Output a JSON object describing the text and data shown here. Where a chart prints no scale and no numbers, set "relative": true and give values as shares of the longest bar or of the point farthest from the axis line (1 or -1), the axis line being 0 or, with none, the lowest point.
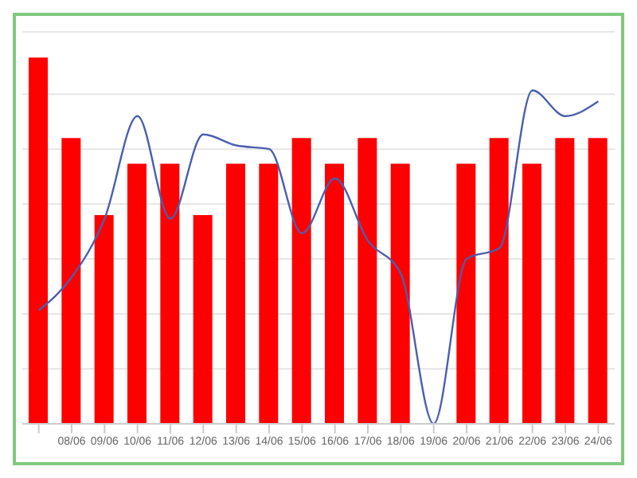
{
  "chart_data": {
    "type": "bar",
    "relative": true,
    "grid": "y",
    "categories": [
      null,
      "08/06",
      "09/06",
      "10/06",
      "11/06",
      "12/06",
      "13/06",
      "14/06",
      "15/06",
      "16/06",
      "17/06",
      "18/06",
      "19/06",
      "20/06",
      "21/06",
      "22/06",
      "23/06",
      "24/06"
    ],
    "series": [
      {
        "color": "#ff0000",
        "values": [
          1,
          0.78,
          0.57,
          0.71,
          0.71,
          0.57,
          0.71,
          0.71,
          0.78,
          0.71,
          0.78,
          0.71,
          0,
          0.71,
          0.78,
          0.71,
          0.78,
          0.78
        ]
      },
      {
        "type": "line",
        "color": "#4a5fb0",
        "values": [
          0.31,
          0.4,
          0.56,
          0.84,
          0.56,
          0.79,
          0.76,
          0.75,
          0.52,
          0.67,
          0.5,
          0.41,
          0,
          0.45,
          0.48,
          0.91,
          0.84,
          0.88
        ]
      }
    ]
  }
}
